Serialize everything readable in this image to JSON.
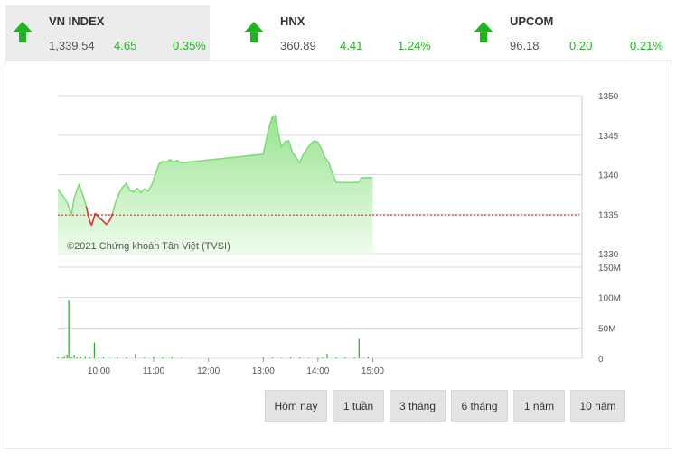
{
  "indices": [
    {
      "name": "VN INDEX",
      "price": "1,339.54",
      "change": "4.65",
      "percent": "0.35%",
      "direction": "up"
    },
    {
      "name": "HNX",
      "price": "360.89",
      "change": "4.41",
      "percent": "1.24%",
      "direction": "up"
    },
    {
      "name": "UPCOM",
      "price": "96.18",
      "change": "0.20",
      "percent": "0.21%",
      "direction": "up"
    }
  ],
  "chart": {
    "copyright": "©2021 Chứng khoán Tân Việt (TVSI)",
    "price_ticks": [
      "1350",
      "1345",
      "1340",
      "1335",
      "1330"
    ],
    "volume_ticks": [
      "150M",
      "100M",
      "50M",
      "0"
    ],
    "time_ticks": [
      "10:00",
      "11:00",
      "12:00",
      "13:00",
      "14:00",
      "15:00"
    ],
    "reference_price": 1334.9
  },
  "chart_data": {
    "type": "area",
    "price_ylim": [
      1330,
      1350
    ],
    "volume_ylim": [
      0,
      150
    ],
    "reference": 1334.9,
    "price_series": {
      "x": [
        "09:15",
        "09:20",
        "09:25",
        "09:30",
        "09:33",
        "09:38",
        "09:42",
        "09:46",
        "09:50",
        "09:52",
        "09:56",
        "10:00",
        "10:04",
        "10:08",
        "10:12",
        "10:15",
        "10:18",
        "10:22",
        "10:26",
        "10:30",
        "10:34",
        "10:38",
        "10:42",
        "10:46",
        "10:50",
        "10:54",
        "10:58",
        "11:02",
        "11:06",
        "11:10",
        "11:14",
        "11:18",
        "11:22",
        "11:26",
        "11:30",
        "13:00",
        "13:03",
        "13:06",
        "13:10",
        "13:13",
        "13:16",
        "13:20",
        "13:24",
        "13:28",
        "13:32",
        "13:36",
        "13:40",
        "13:44",
        "13:48",
        "13:52",
        "13:56",
        "14:00",
        "14:04",
        "14:08",
        "14:12",
        "14:16",
        "14:20",
        "14:24",
        "14:28",
        "14:32",
        "14:36",
        "14:40",
        "14:44",
        "14:48",
        "14:52",
        "14:56",
        "15:00"
      ],
      "y": [
        1338.2,
        1337.4,
        1336.5,
        1335.0,
        1337.1,
        1338.7,
        1337.6,
        1336.0,
        1334.1,
        1333.6,
        1335.1,
        1334.6,
        1334.2,
        1333.7,
        1334.2,
        1335.1,
        1336.4,
        1337.6,
        1338.4,
        1338.9,
        1338.0,
        1337.8,
        1338.3,
        1337.7,
        1338.2,
        1337.9,
        1338.7,
        1340.1,
        1341.4,
        1341.7,
        1341.6,
        1341.9,
        1341.6,
        1341.8,
        1341.5,
        1342.6,
        1344.2,
        1345.9,
        1347.3,
        1347.5,
        1345.6,
        1343.5,
        1344.2,
        1344.3,
        1342.8,
        1342.2,
        1341.5,
        1342.6,
        1343.3,
        1343.9,
        1344.3,
        1344.1,
        1343.2,
        1342.1,
        1341.5,
        1340.1,
        1339.0,
        1339.0,
        1339.0,
        1339.0,
        1339.0,
        1339.0,
        1339.0,
        1339.6,
        1339.6,
        1339.6,
        1339.6
      ]
    },
    "volume_series": {
      "x": [
        "09:15",
        "09:20",
        "09:22",
        "09:25",
        "09:27",
        "09:30",
        "09:33",
        "09:36",
        "09:40",
        "09:45",
        "09:50",
        "09:55",
        "10:00",
        "10:05",
        "10:10",
        "10:20",
        "10:30",
        "10:40",
        "10:50",
        "11:00",
        "11:10",
        "11:20",
        "11:30",
        "13:00",
        "13:10",
        "13:20",
        "13:30",
        "13:40",
        "13:50",
        "14:00",
        "14:05",
        "14:10",
        "14:20",
        "14:30",
        "14:40",
        "14:45",
        "14:50",
        "14:55"
      ],
      "y": [
        3,
        2,
        4,
        6,
        96,
        3,
        6,
        2,
        3,
        4,
        2,
        26,
        3,
        2,
        4,
        2,
        2,
        7,
        2,
        3,
        2,
        2,
        1,
        2,
        2,
        1,
        2,
        2,
        1,
        1,
        2,
        7,
        2,
        2,
        2,
        32,
        1,
        3
      ]
    },
    "xlim": [
      "09:15",
      "15:00"
    ]
  },
  "ranges": [
    "Hôm nay",
    "1 tuần",
    "3 tháng",
    "6 tháng",
    "1 năm",
    "10 năm"
  ],
  "colors": {
    "up": "#1fb51f",
    "down": "#d9302c",
    "area_top": "#98e38f",
    "area_bottom": "#eafbe7",
    "reference": "#a8241f"
  }
}
